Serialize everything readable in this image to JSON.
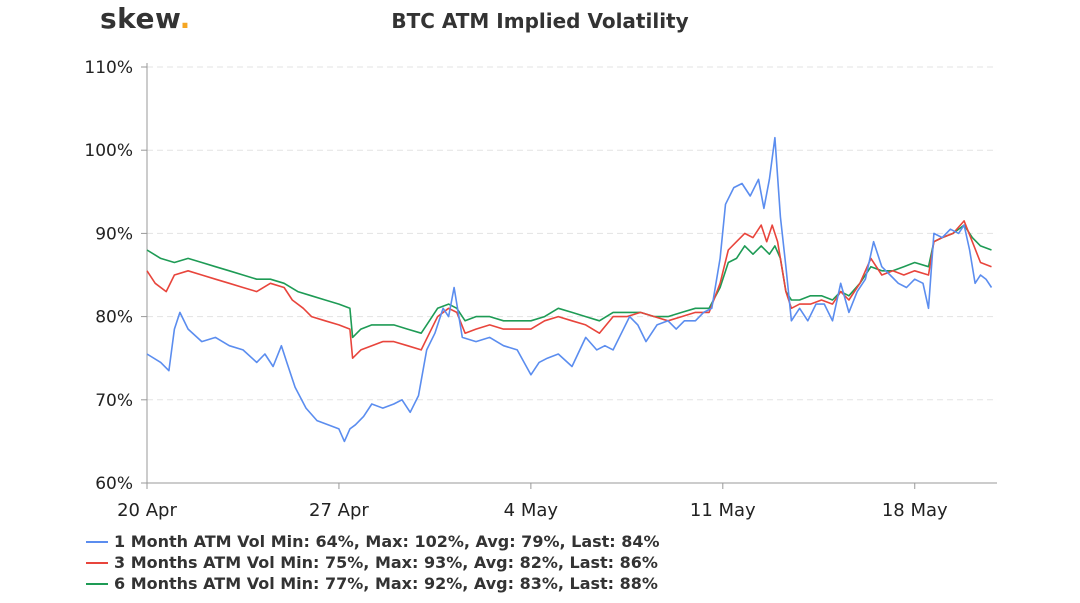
{
  "brand": {
    "name": "skew",
    "dot": "."
  },
  "chart_data": {
    "type": "line",
    "title": "BTC ATM Implied Volatility",
    "xlabel": "",
    "ylabel": "",
    "ylim": [
      60,
      110
    ],
    "yticks": [
      "60%",
      "70%",
      "80%",
      "90%",
      "100%",
      "110%"
    ],
    "xticks": [
      "20 Apr",
      "27 Apr",
      "4 May",
      "11 May",
      "18 May"
    ],
    "grid": true,
    "legend_position": "bottom-left",
    "x_start": "2020-04-20",
    "x_end": "2020-05-20",
    "series": [
      {
        "name": "1 Month ATM Vol",
        "legend": "1 Month ATM Vol Min: 64%, Max: 102%, Avg: 79%, Last: 84%",
        "color": "#5b8def",
        "values": [
          [
            0.0,
            75.5
          ],
          [
            0.5,
            74.5
          ],
          [
            0.8,
            73.5
          ],
          [
            1.0,
            78.5
          ],
          [
            1.2,
            80.5
          ],
          [
            1.5,
            78.5
          ],
          [
            2.0,
            77.0
          ],
          [
            2.5,
            77.5
          ],
          [
            3.0,
            76.5
          ],
          [
            3.5,
            76.0
          ],
          [
            4.0,
            74.5
          ],
          [
            4.3,
            75.5
          ],
          [
            4.6,
            74.0
          ],
          [
            4.9,
            76.5
          ],
          [
            5.1,
            74.5
          ],
          [
            5.4,
            71.5
          ],
          [
            5.8,
            69.0
          ],
          [
            6.2,
            67.5
          ],
          [
            6.6,
            67.0
          ],
          [
            7.0,
            66.5
          ],
          [
            7.2,
            65.0
          ],
          [
            7.4,
            66.5
          ],
          [
            7.6,
            67.0
          ],
          [
            7.9,
            68.0
          ],
          [
            8.2,
            69.5
          ],
          [
            8.6,
            69.0
          ],
          [
            9.0,
            69.5
          ],
          [
            9.3,
            70.0
          ],
          [
            9.6,
            68.5
          ],
          [
            9.9,
            70.5
          ],
          [
            10.2,
            76.0
          ],
          [
            10.5,
            78.0
          ],
          [
            10.8,
            81.0
          ],
          [
            11.0,
            80.0
          ],
          [
            11.2,
            83.5
          ],
          [
            11.5,
            77.5
          ],
          [
            12.0,
            77.0
          ],
          [
            12.5,
            77.5
          ],
          [
            13.0,
            76.5
          ],
          [
            13.5,
            76.0
          ],
          [
            14.0,
            73.0
          ],
          [
            14.3,
            74.5
          ],
          [
            14.6,
            75.0
          ],
          [
            15.0,
            75.5
          ],
          [
            15.5,
            74.0
          ],
          [
            16.0,
            77.5
          ],
          [
            16.4,
            76.0
          ],
          [
            16.7,
            76.5
          ],
          [
            17.0,
            76.0
          ],
          [
            17.3,
            78.0
          ],
          [
            17.6,
            80.0
          ],
          [
            17.9,
            79.0
          ],
          [
            18.2,
            77.0
          ],
          [
            18.6,
            79.0
          ],
          [
            19.0,
            79.5
          ],
          [
            19.3,
            78.5
          ],
          [
            19.6,
            79.5
          ],
          [
            20.0,
            79.5
          ],
          [
            20.3,
            80.5
          ],
          [
            20.6,
            81.0
          ],
          [
            20.9,
            87.0
          ],
          [
            21.1,
            93.5
          ],
          [
            21.4,
            95.5
          ],
          [
            21.7,
            96.0
          ],
          [
            22.0,
            94.5
          ],
          [
            22.3,
            96.5
          ],
          [
            22.5,
            93.0
          ],
          [
            22.7,
            96.5
          ],
          [
            22.9,
            101.5
          ],
          [
            23.1,
            92.0
          ],
          [
            23.3,
            86.0
          ],
          [
            23.5,
            79.5
          ],
          [
            23.8,
            81.0
          ],
          [
            24.1,
            79.5
          ],
          [
            24.4,
            81.5
          ],
          [
            24.7,
            81.5
          ],
          [
            25.0,
            79.5
          ],
          [
            25.3,
            84.0
          ],
          [
            25.6,
            80.5
          ],
          [
            25.9,
            83.0
          ],
          [
            26.2,
            84.5
          ],
          [
            26.5,
            89.0
          ],
          [
            26.8,
            86.0
          ],
          [
            27.1,
            85.0
          ],
          [
            27.4,
            84.0
          ],
          [
            27.7,
            83.5
          ],
          [
            28.0,
            84.5
          ],
          [
            28.3,
            84.0
          ],
          [
            28.5,
            81.0
          ],
          [
            28.7,
            90.0
          ],
          [
            29.0,
            89.5
          ],
          [
            29.3,
            90.5
          ],
          [
            29.6,
            90.0
          ],
          [
            29.8,
            91.0
          ],
          [
            30.0,
            88.0
          ],
          [
            30.2,
            84.0
          ],
          [
            30.4,
            85.0
          ],
          [
            30.6,
            84.5
          ],
          [
            30.8,
            83.5
          ]
        ]
      },
      {
        "name": "3 Months ATM Vol",
        "legend": "3 Months ATM Vol Min: 75%, Max: 93%, Avg: 82%, Last: 86%",
        "color": "#e8453c",
        "values": [
          [
            0.0,
            85.5
          ],
          [
            0.3,
            84.0
          ],
          [
            0.7,
            83.0
          ],
          [
            1.0,
            85.0
          ],
          [
            1.5,
            85.5
          ],
          [
            2.0,
            85.0
          ],
          [
            2.5,
            84.5
          ],
          [
            3.0,
            84.0
          ],
          [
            3.5,
            83.5
          ],
          [
            4.0,
            83.0
          ],
          [
            4.5,
            84.0
          ],
          [
            5.0,
            83.5
          ],
          [
            5.3,
            82.0
          ],
          [
            5.7,
            81.0
          ],
          [
            6.0,
            80.0
          ],
          [
            6.5,
            79.5
          ],
          [
            7.0,
            79.0
          ],
          [
            7.4,
            78.5
          ],
          [
            7.5,
            75.0
          ],
          [
            7.8,
            76.0
          ],
          [
            8.2,
            76.5
          ],
          [
            8.6,
            77.0
          ],
          [
            9.0,
            77.0
          ],
          [
            9.5,
            76.5
          ],
          [
            10.0,
            76.0
          ],
          [
            10.3,
            78.0
          ],
          [
            10.6,
            80.0
          ],
          [
            11.0,
            81.0
          ],
          [
            11.3,
            80.5
          ],
          [
            11.6,
            78.0
          ],
          [
            12.0,
            78.5
          ],
          [
            12.5,
            79.0
          ],
          [
            13.0,
            78.5
          ],
          [
            13.5,
            78.5
          ],
          [
            14.0,
            78.5
          ],
          [
            14.5,
            79.5
          ],
          [
            15.0,
            80.0
          ],
          [
            15.5,
            79.5
          ],
          [
            16.0,
            79.0
          ],
          [
            16.5,
            78.0
          ],
          [
            17.0,
            80.0
          ],
          [
            17.5,
            80.0
          ],
          [
            18.0,
            80.5
          ],
          [
            18.5,
            80.0
          ],
          [
            19.0,
            79.5
          ],
          [
            19.5,
            80.0
          ],
          [
            20.0,
            80.5
          ],
          [
            20.5,
            80.5
          ],
          [
            20.9,
            84.0
          ],
          [
            21.2,
            88.0
          ],
          [
            21.5,
            89.0
          ],
          [
            21.8,
            90.0
          ],
          [
            22.1,
            89.5
          ],
          [
            22.4,
            91.0
          ],
          [
            22.6,
            89.0
          ],
          [
            22.8,
            91.0
          ],
          [
            23.0,
            89.0
          ],
          [
            23.3,
            83.0
          ],
          [
            23.5,
            81.0
          ],
          [
            23.8,
            81.5
          ],
          [
            24.2,
            81.5
          ],
          [
            24.6,
            82.0
          ],
          [
            25.0,
            81.5
          ],
          [
            25.3,
            83.0
          ],
          [
            25.6,
            82.0
          ],
          [
            26.0,
            84.0
          ],
          [
            26.4,
            87.0
          ],
          [
            26.8,
            85.0
          ],
          [
            27.2,
            85.5
          ],
          [
            27.6,
            85.0
          ],
          [
            28.0,
            85.5
          ],
          [
            28.5,
            85.0
          ],
          [
            28.7,
            89.0
          ],
          [
            29.0,
            89.5
          ],
          [
            29.4,
            90.0
          ],
          [
            29.8,
            91.5
          ],
          [
            30.1,
            89.0
          ],
          [
            30.4,
            86.5
          ],
          [
            30.8,
            86.0
          ]
        ]
      },
      {
        "name": "6 Months ATM Vol",
        "legend": "6 Months ATM Vol Min: 77%, Max: 92%, Avg: 83%, Last: 88%",
        "color": "#1e9b55",
        "values": [
          [
            0.0,
            88.0
          ],
          [
            0.5,
            87.0
          ],
          [
            1.0,
            86.5
          ],
          [
            1.5,
            87.0
          ],
          [
            2.0,
            86.5
          ],
          [
            2.5,
            86.0
          ],
          [
            3.0,
            85.5
          ],
          [
            3.5,
            85.0
          ],
          [
            4.0,
            84.5
          ],
          [
            4.5,
            84.5
          ],
          [
            5.0,
            84.0
          ],
          [
            5.5,
            83.0
          ],
          [
            6.0,
            82.5
          ],
          [
            6.5,
            82.0
          ],
          [
            7.0,
            81.5
          ],
          [
            7.4,
            81.0
          ],
          [
            7.5,
            77.5
          ],
          [
            7.8,
            78.5
          ],
          [
            8.2,
            79.0
          ],
          [
            8.6,
            79.0
          ],
          [
            9.0,
            79.0
          ],
          [
            9.5,
            78.5
          ],
          [
            10.0,
            78.0
          ],
          [
            10.3,
            79.5
          ],
          [
            10.6,
            81.0
          ],
          [
            11.0,
            81.5
          ],
          [
            11.3,
            81.0
          ],
          [
            11.6,
            79.5
          ],
          [
            12.0,
            80.0
          ],
          [
            12.5,
            80.0
          ],
          [
            13.0,
            79.5
          ],
          [
            13.5,
            79.5
          ],
          [
            14.0,
            79.5
          ],
          [
            14.5,
            80.0
          ],
          [
            15.0,
            81.0
          ],
          [
            15.5,
            80.5
          ],
          [
            16.0,
            80.0
          ],
          [
            16.5,
            79.5
          ],
          [
            17.0,
            80.5
          ],
          [
            17.5,
            80.5
          ],
          [
            18.0,
            80.5
          ],
          [
            18.5,
            80.0
          ],
          [
            19.0,
            80.0
          ],
          [
            19.5,
            80.5
          ],
          [
            20.0,
            81.0
          ],
          [
            20.5,
            81.0
          ],
          [
            20.9,
            83.5
          ],
          [
            21.2,
            86.5
          ],
          [
            21.5,
            87.0
          ],
          [
            21.8,
            88.5
          ],
          [
            22.1,
            87.5
          ],
          [
            22.4,
            88.5
          ],
          [
            22.7,
            87.5
          ],
          [
            22.9,
            88.5
          ],
          [
            23.1,
            87.0
          ],
          [
            23.3,
            83.0
          ],
          [
            23.5,
            82.0
          ],
          [
            23.8,
            82.0
          ],
          [
            24.2,
            82.5
          ],
          [
            24.6,
            82.5
          ],
          [
            25.0,
            82.0
          ],
          [
            25.3,
            83.0
          ],
          [
            25.6,
            82.5
          ],
          [
            26.0,
            84.0
          ],
          [
            26.4,
            86.0
          ],
          [
            26.8,
            85.5
          ],
          [
            27.2,
            85.5
          ],
          [
            27.6,
            86.0
          ],
          [
            28.0,
            86.5
          ],
          [
            28.5,
            86.0
          ],
          [
            28.7,
            89.0
          ],
          [
            29.0,
            89.5
          ],
          [
            29.4,
            90.0
          ],
          [
            29.8,
            91.0
          ],
          [
            30.1,
            89.5
          ],
          [
            30.4,
            88.5
          ],
          [
            30.8,
            88.0
          ]
        ]
      }
    ]
  }
}
